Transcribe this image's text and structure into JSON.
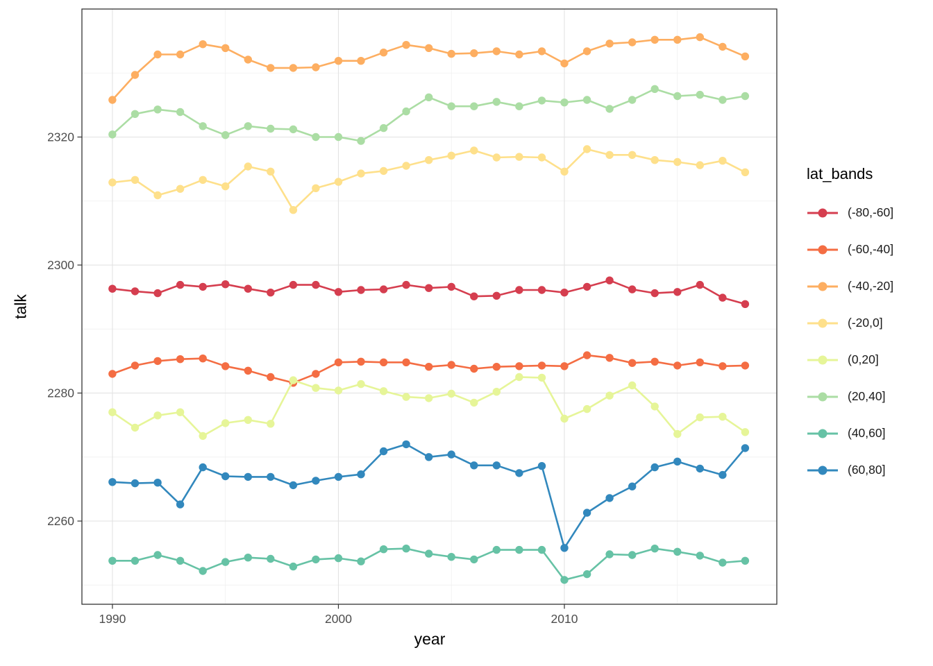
{
  "chart_data": {
    "type": "line",
    "title": "",
    "xlabel": "year",
    "ylabel": "talk",
    "legend_title": "lat_bands",
    "legend_position": "right",
    "grid": true,
    "panel_border_color": "#333333",
    "major_grid_color": "#e3e3e3",
    "minor_grid_color": "#f0f0f0",
    "tick_label_color": "#4d4d4d",
    "xlim": [
      1988.65,
      2019.4
    ],
    "ylim": [
      2247,
      2340
    ],
    "x_ticks": [
      1990,
      2000,
      2010
    ],
    "x_minor_ticks": [
      1995,
      2005,
      2015
    ],
    "y_ticks": [
      2260,
      2280,
      2300,
      2320
    ],
    "y_minor_ticks": [
      2250,
      2270,
      2290,
      2310,
      2330
    ],
    "x": [
      1990,
      1991,
      1992,
      1993,
      1994,
      1995,
      1996,
      1997,
      1998,
      1999,
      2000,
      2001,
      2002,
      2003,
      2004,
      2005,
      2006,
      2007,
      2008,
      2009,
      2010,
      2011,
      2012,
      2013,
      2014,
      2015,
      2016,
      2017,
      2018
    ],
    "series": [
      {
        "name": "(-80,-60]",
        "color": "#d53e4f",
        "values": [
          2296.3,
          2295.9,
          2295.6,
          2296.9,
          2296.6,
          2297.0,
          2296.3,
          2295.7,
          2296.9,
          2296.9,
          2295.8,
          2296.1,
          2296.2,
          2296.9,
          2296.4,
          2296.6,
          2295.1,
          2295.2,
          2296.1,
          2296.1,
          2295.7,
          2296.6,
          2297.6,
          2296.2,
          2295.6,
          2295.8,
          2296.9,
          2294.9,
          2293.9
        ]
      },
      {
        "name": "(-60,-40]",
        "color": "#f46d43",
        "values": [
          2283.0,
          2284.3,
          2285.0,
          2285.3,
          2285.4,
          2284.2,
          2283.5,
          2282.5,
          2281.6,
          2283.0,
          2284.8,
          2284.9,
          2284.8,
          2284.8,
          2284.1,
          2284.4,
          2283.8,
          2284.1,
          2284.2,
          2284.3,
          2284.2,
          2285.9,
          2285.5,
          2284.7,
          2284.9,
          2284.3,
          2284.8,
          2284.2,
          2284.3
        ]
      },
      {
        "name": "(-40,-20]",
        "color": "#fdae61",
        "values": [
          2325.8,
          2329.7,
          2332.9,
          2332.9,
          2334.5,
          2333.9,
          2332.1,
          2330.8,
          2330.8,
          2330.9,
          2331.9,
          2331.9,
          2333.2,
          2334.4,
          2333.9,
          2333.0,
          2333.1,
          2333.4,
          2332.9,
          2333.4,
          2331.5,
          2333.4,
          2334.6,
          2334.8,
          2335.2,
          2335.2,
          2335.6,
          2334.1,
          2332.6
        ]
      },
      {
        "name": "(-20,0]",
        "color": "#fee08b",
        "values": [
          2312.9,
          2313.3,
          2310.9,
          2311.9,
          2313.3,
          2312.3,
          2315.4,
          2314.6,
          2308.6,
          2312.0,
          2313.0,
          2314.3,
          2314.7,
          2315.5,
          2316.4,
          2317.1,
          2317.9,
          2316.8,
          2316.9,
          2316.8,
          2314.6,
          2318.1,
          2317.2,
          2317.2,
          2316.4,
          2316.1,
          2315.6,
          2316.3,
          2314.5
        ]
      },
      {
        "name": "(0,20]",
        "color": "#e6f598",
        "values": [
          2277.0,
          2274.6,
          2276.5,
          2277.0,
          2273.3,
          2275.3,
          2275.8,
          2275.2,
          2282.0,
          2280.8,
          2280.4,
          2281.4,
          2280.3,
          2279.4,
          2279.2,
          2279.9,
          2278.5,
          2280.2,
          2282.5,
          2282.4,
          2276.0,
          2277.5,
          2279.6,
          2281.2,
          2277.9,
          2273.6,
          2276.2,
          2276.3,
          2273.9
        ]
      },
      {
        "name": "(20,40]",
        "color": "#abdda4",
        "values": [
          2320.4,
          2323.6,
          2324.3,
          2323.9,
          2321.7,
          2320.3,
          2321.7,
          2321.3,
          2321.2,
          2320.0,
          2320.0,
          2319.4,
          2321.4,
          2324.0,
          2326.2,
          2324.8,
          2324.8,
          2325.5,
          2324.8,
          2325.7,
          2325.4,
          2325.8,
          2324.4,
          2325.8,
          2327.5,
          2326.4,
          2326.6,
          2325.8,
          2326.4
        ]
      },
      {
        "name": "(40,60]",
        "color": "#66c2a5",
        "values": [
          2253.8,
          2253.8,
          2254.7,
          2253.8,
          2252.2,
          2253.6,
          2254.3,
          2254.1,
          2252.9,
          2254.0,
          2254.2,
          2253.7,
          2255.6,
          2255.7,
          2254.9,
          2254.4,
          2254.0,
          2255.5,
          2255.5,
          2255.5,
          2250.8,
          2251.7,
          2254.8,
          2254.7,
          2255.7,
          2255.2,
          2254.6,
          2253.5,
          2253.8
        ]
      },
      {
        "name": "(60,80]",
        "color": "#3288bd",
        "values": [
          2266.1,
          2265.9,
          2266.0,
          2262.6,
          2268.4,
          2267.0,
          2266.9,
          2266.9,
          2265.6,
          2266.3,
          2266.9,
          2267.3,
          2270.9,
          2272.0,
          2270.0,
          2270.4,
          2268.7,
          2268.7,
          2267.5,
          2268.6,
          2255.8,
          2261.3,
          2263.6,
          2265.4,
          2268.4,
          2269.3,
          2268.2,
          2267.2,
          2271.4
        ]
      }
    ]
  }
}
